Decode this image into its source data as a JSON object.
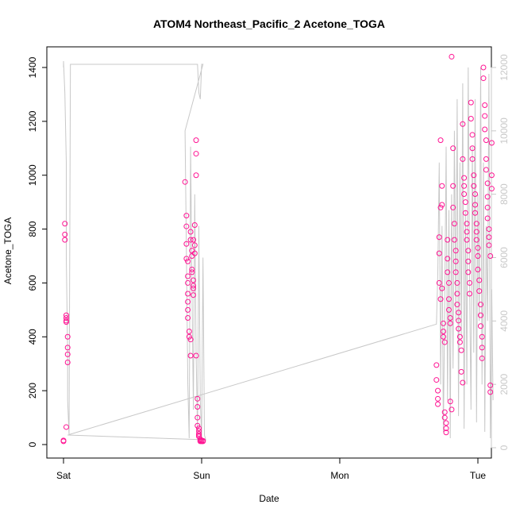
{
  "chart_data": {
    "type": "scatter",
    "title": "ATOM4 Northeast_Pacific_2 Acetone_TOGA",
    "xlabel": "Date",
    "ylabel": "Acetone_TOGA",
    "x_ticks": [
      "Sat",
      "Sun",
      "Mon",
      "Tue"
    ],
    "x_range_days": [
      0,
      3
    ],
    "ylim": [
      0,
      1400
    ],
    "y_ticks": [
      0,
      200,
      400,
      600,
      800,
      1000,
      1200,
      1400
    ],
    "y2lim": [
      0,
      12000
    ],
    "y2_ticks": [
      0,
      2000,
      4000,
      6000,
      8000,
      10000,
      12000
    ],
    "grid": false,
    "colors": {
      "points": "#ff1493",
      "secondary_line": "#c8c8c8",
      "axis": "#000000"
    },
    "series": [
      {
        "kind": "points",
        "axis": "left",
        "points": [
          [
            0.0,
            15
          ],
          [
            0.0,
            12
          ],
          [
            0.01,
            820
          ],
          [
            0.01,
            780
          ],
          [
            0.01,
            760
          ],
          [
            0.02,
            480
          ],
          [
            0.02,
            470
          ],
          [
            0.02,
            455
          ],
          [
            0.02,
            460
          ],
          [
            0.02,
            65
          ],
          [
            0.03,
            400
          ],
          [
            0.03,
            360
          ],
          [
            0.03,
            335
          ],
          [
            0.03,
            305
          ],
          [
            0.88,
            975
          ],
          [
            0.89,
            850
          ],
          [
            0.89,
            810
          ],
          [
            0.89,
            745
          ],
          [
            0.89,
            690
          ],
          [
            0.9,
            680
          ],
          [
            0.9,
            625
          ],
          [
            0.9,
            600
          ],
          [
            0.9,
            560
          ],
          [
            0.9,
            530
          ],
          [
            0.9,
            500
          ],
          [
            0.9,
            470
          ],
          [
            0.91,
            420
          ],
          [
            0.91,
            400
          ],
          [
            0.92,
            390
          ],
          [
            0.92,
            330
          ],
          [
            0.92,
            790
          ],
          [
            0.92,
            760
          ],
          [
            0.93,
            720
          ],
          [
            0.93,
            700
          ],
          [
            0.93,
            650
          ],
          [
            0.93,
            640
          ],
          [
            0.94,
            610
          ],
          [
            0.94,
            590
          ],
          [
            0.94,
            580
          ],
          [
            0.94,
            555
          ],
          [
            0.94,
            760
          ],
          [
            0.95,
            740
          ],
          [
            0.95,
            815
          ],
          [
            0.95,
            710
          ],
          [
            0.96,
            1130
          ],
          [
            0.96,
            1080
          ],
          [
            0.96,
            1000
          ],
          [
            0.96,
            330
          ],
          [
            0.97,
            170
          ],
          [
            0.97,
            140
          ],
          [
            0.97,
            100
          ],
          [
            0.97,
            70
          ],
          [
            0.98,
            60
          ],
          [
            0.98,
            50
          ],
          [
            0.98,
            40
          ],
          [
            0.98,
            35
          ],
          [
            0.98,
            30
          ],
          [
            0.99,
            20
          ],
          [
            0.99,
            15
          ],
          [
            0.99,
            12
          ],
          [
            1.0,
            12
          ],
          [
            1.0,
            15
          ],
          [
            1.01,
            12
          ],
          [
            1.01,
            14
          ],
          [
            2.7,
            295
          ],
          [
            2.7,
            240
          ],
          [
            2.71,
            200
          ],
          [
            2.71,
            170
          ],
          [
            2.71,
            150
          ],
          [
            2.72,
            600
          ],
          [
            2.72,
            770
          ],
          [
            2.72,
            710
          ],
          [
            2.73,
            540
          ],
          [
            2.73,
            880
          ],
          [
            2.73,
            1130
          ],
          [
            2.74,
            960
          ],
          [
            2.74,
            890
          ],
          [
            2.74,
            580
          ],
          [
            2.75,
            450
          ],
          [
            2.75,
            420
          ],
          [
            2.75,
            400
          ],
          [
            2.76,
            380
          ],
          [
            2.76,
            120
          ],
          [
            2.76,
            100
          ],
          [
            2.77,
            80
          ],
          [
            2.77,
            60
          ],
          [
            2.77,
            45
          ],
          [
            2.78,
            760
          ],
          [
            2.78,
            690
          ],
          [
            2.78,
            640
          ],
          [
            2.79,
            600
          ],
          [
            2.79,
            540
          ],
          [
            2.79,
            500
          ],
          [
            2.8,
            470
          ],
          [
            2.8,
            450
          ],
          [
            2.8,
            160
          ],
          [
            2.81,
            130
          ],
          [
            2.81,
            1440
          ],
          [
            2.82,
            1100
          ],
          [
            2.82,
            960
          ],
          [
            2.82,
            880
          ],
          [
            2.83,
            820
          ],
          [
            2.83,
            760
          ],
          [
            2.84,
            720
          ],
          [
            2.84,
            680
          ],
          [
            2.84,
            640
          ],
          [
            2.85,
            600
          ],
          [
            2.85,
            560
          ],
          [
            2.85,
            520
          ],
          [
            2.86,
            490
          ],
          [
            2.86,
            460
          ],
          [
            2.86,
            430
          ],
          [
            2.87,
            400
          ],
          [
            2.87,
            380
          ],
          [
            2.88,
            350
          ],
          [
            2.88,
            270
          ],
          [
            2.89,
            230
          ],
          [
            2.89,
            1190
          ],
          [
            2.89,
            1060
          ],
          [
            2.9,
            990
          ],
          [
            2.9,
            960
          ],
          [
            2.9,
            930
          ],
          [
            2.91,
            900
          ],
          [
            2.91,
            860
          ],
          [
            2.92,
            820
          ],
          [
            2.92,
            790
          ],
          [
            2.92,
            760
          ],
          [
            2.93,
            720
          ],
          [
            2.93,
            680
          ],
          [
            2.93,
            640
          ],
          [
            2.94,
            600
          ],
          [
            2.94,
            560
          ],
          [
            2.95,
            1270
          ],
          [
            2.95,
            1210
          ],
          [
            2.96,
            1150
          ],
          [
            2.96,
            1100
          ],
          [
            2.96,
            1060
          ],
          [
            2.97,
            1000
          ],
          [
            2.97,
            960
          ],
          [
            2.98,
            930
          ],
          [
            2.98,
            890
          ],
          [
            2.98,
            860
          ],
          [
            2.99,
            820
          ],
          [
            2.99,
            790
          ],
          [
            2.99,
            760
          ],
          [
            3.0,
            730
          ],
          [
            3.0,
            700
          ],
          [
            3.0,
            650
          ],
          [
            3.01,
            610
          ],
          [
            3.01,
            570
          ],
          [
            3.02,
            520
          ],
          [
            3.02,
            480
          ],
          [
            3.02,
            440
          ],
          [
            3.03,
            400
          ],
          [
            3.03,
            360
          ],
          [
            3.03,
            320
          ],
          [
            3.04,
            1400
          ],
          [
            3.04,
            1360
          ],
          [
            3.05,
            1260
          ],
          [
            3.05,
            1220
          ],
          [
            3.05,
            1170
          ],
          [
            3.06,
            1130
          ],
          [
            3.06,
            1060
          ],
          [
            3.06,
            1020
          ],
          [
            3.07,
            970
          ],
          [
            3.07,
            920
          ],
          [
            3.07,
            880
          ],
          [
            3.07,
            840
          ],
          [
            3.08,
            800
          ],
          [
            3.08,
            770
          ],
          [
            3.08,
            740
          ],
          [
            3.09,
            700
          ],
          [
            3.09,
            220
          ],
          [
            3.09,
            195
          ],
          [
            3.1,
            1120
          ],
          [
            3.1,
            1000
          ],
          [
            3.1,
            950
          ]
        ]
      },
      {
        "kind": "line",
        "axis": "right",
        "points": [
          [
            0.0,
            12000
          ],
          [
            0.0,
            12200
          ],
          [
            0.01,
            11200
          ],
          [
            0.02,
            9000
          ],
          [
            0.02,
            6000
          ],
          [
            0.03,
            3000
          ],
          [
            0.03,
            1500
          ],
          [
            0.04,
            400
          ],
          [
            0.05,
            12100
          ],
          [
            0.3,
            12100
          ],
          [
            0.6,
            12100
          ],
          [
            0.9,
            12100
          ],
          [
            0.97,
            12100
          ],
          [
            0.98,
            11200
          ],
          [
            0.99,
            11000
          ],
          [
            1.0,
            12100
          ],
          [
            1.01,
            12100
          ],
          [
            0.88,
            10000
          ],
          [
            0.89,
            6000
          ],
          [
            0.9,
            2000
          ],
          [
            0.91,
            300
          ],
          [
            0.92,
            9500
          ],
          [
            0.93,
            5000
          ],
          [
            0.94,
            1200
          ],
          [
            0.95,
            8000
          ],
          [
            0.96,
            3000
          ],
          [
            0.97,
            500
          ],
          [
            0.98,
            7000
          ],
          [
            0.99,
            1500
          ],
          [
            1.0,
            300
          ],
          [
            1.01,
            6000
          ],
          [
            1.02,
            400
          ],
          [
            1.03,
            250
          ],
          [
            0.03,
            400
          ],
          [
            2.7,
            3900
          ],
          [
            2.71,
            5500
          ],
          [
            2.72,
            9000
          ],
          [
            2.73,
            2000
          ],
          [
            2.74,
            7000
          ],
          [
            2.75,
            500
          ],
          [
            2.76,
            4500
          ],
          [
            2.77,
            9500
          ],
          [
            2.78,
            1500
          ],
          [
            2.79,
            7500
          ],
          [
            2.8,
            300
          ],
          [
            2.81,
            8000
          ],
          [
            2.82,
            2500
          ],
          [
            2.83,
            10000
          ],
          [
            2.84,
            4000
          ],
          [
            2.85,
            11000
          ],
          [
            2.86,
            1000
          ],
          [
            2.87,
            9000
          ],
          [
            2.88,
            3500
          ],
          [
            2.89,
            11500
          ],
          [
            2.9,
            600
          ],
          [
            2.91,
            7500
          ],
          [
            2.92,
            2000
          ],
          [
            2.93,
            12000
          ],
          [
            2.94,
            5000
          ],
          [
            2.95,
            1200
          ],
          [
            2.96,
            9500
          ],
          [
            2.97,
            3000
          ],
          [
            2.98,
            11000
          ],
          [
            2.99,
            800
          ],
          [
            3.0,
            8000
          ],
          [
            3.01,
            4000
          ],
          [
            3.02,
            12000
          ],
          [
            3.03,
            2000
          ],
          [
            3.04,
            9000
          ],
          [
            3.05,
            500
          ],
          [
            3.06,
            7000
          ],
          [
            3.07,
            4000
          ],
          [
            3.08,
            11800
          ],
          [
            3.09,
            300
          ],
          [
            3.1,
            5000
          ],
          [
            3.11,
            1500
          ]
        ]
      }
    ]
  }
}
